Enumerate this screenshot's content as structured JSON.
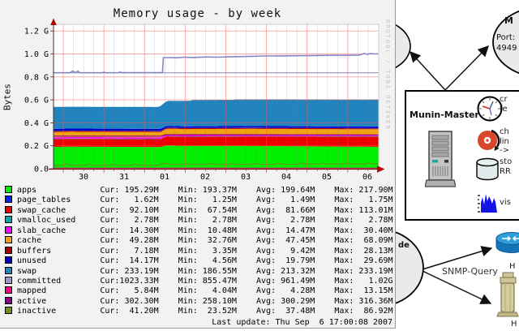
{
  "graph_panel": {
    "title": "Memory usage - by week",
    "y_axis_label": "Bytes",
    "watermark": "RRDTOOL / TOBI OETIKER",
    "last_update": "Last update: Thu Sep  6 17:00:08 2007",
    "legend": {
      "headers": [
        "Cur:",
        "Min:",
        "Avg:",
        "Max:"
      ],
      "rows": [
        {
          "label": "apps",
          "color": "#00EE00",
          "cur": "195.29M",
          "min": "193.37M",
          "avg": "199.64M",
          "max": "217.90M"
        },
        {
          "label": "page_tables",
          "color": "#0022FF",
          "cur": "1.62M",
          "min": "1.25M",
          "avg": "1.49M",
          "max": "1.75M"
        },
        {
          "label": "swap_cache",
          "color": "#EE0000",
          "cur": "92.10M",
          "min": "67.54M",
          "avg": "81.66M",
          "max": "113.01M"
        },
        {
          "label": "vmalloc_used",
          "color": "#00AAAA",
          "cur": "2.78M",
          "min": "2.78M",
          "avg": "2.78M",
          "max": "2.78M"
        },
        {
          "label": "slab_cache",
          "color": "#FF00FF",
          "cur": "14.30M",
          "min": "10.48M",
          "avg": "14.47M",
          "max": "30.40M"
        },
        {
          "label": "cache",
          "color": "#EFA30F",
          "cur": "49.28M",
          "min": "32.76M",
          "avg": "47.45M",
          "max": "68.09M"
        },
        {
          "label": "buffers",
          "color": "#AA0000",
          "cur": "7.18M",
          "min": "3.35M",
          "avg": "9.42M",
          "max": "28.13M"
        },
        {
          "label": "unused",
          "color": "#0000CC",
          "cur": "14.17M",
          "min": "4.56M",
          "avg": "19.79M",
          "max": "29.69M"
        },
        {
          "label": "swap",
          "color": "#2284BE",
          "cur": "233.19M",
          "min": "186.55M",
          "avg": "213.32M",
          "max": "233.19M"
        },
        {
          "label": "committed",
          "color": "#9999CC",
          "cur": "1023.33M",
          "min": "855.47M",
          "avg": "961.49M",
          "max": "1.02G"
        },
        {
          "label": "mapped",
          "color": "#FF0084",
          "cur": "5.84M",
          "min": "4.04M",
          "avg": "4.28M",
          "max": "13.15M"
        },
        {
          "label": "active",
          "color": "#8B008B",
          "cur": "302.30M",
          "min": "258.10M",
          "avg": "300.29M",
          "max": "316.36M"
        },
        {
          "label": "inactive",
          "color": "#708F18",
          "cur": "41.20M",
          "min": "23.52M",
          "avg": "37.48M",
          "max": "86.92M"
        }
      ]
    }
  },
  "chart_data": {
    "type": "area",
    "title": "Memory usage - by week",
    "ylabel": "Bytes",
    "unit": "G",
    "ylim": [
      0,
      1.3
    ],
    "grid": true,
    "y_ticks": [
      [
        "0.0",
        0
      ],
      [
        "0.2 G",
        0.2
      ],
      [
        "0.4 G",
        0.4
      ],
      [
        "0.6 G",
        0.6
      ],
      [
        "0.8 G",
        0.8
      ],
      [
        "1.0 G",
        1.0
      ],
      [
        "1.2 G",
        1.2
      ]
    ],
    "x_ticks": [
      "30",
      "31",
      "01",
      "02",
      "03",
      "04",
      "05",
      "06"
    ],
    "stack_order_bottom_to_top": [
      "apps",
      "swap_cache",
      "vmalloc_used",
      "slab_cache",
      "cache",
      "buffers",
      "page_tables",
      "unused",
      "swap"
    ],
    "areas": [
      {
        "name": "apps",
        "color": "#00EE00",
        "points": [
          [
            0,
            0.19
          ],
          [
            0.05,
            0.192
          ],
          [
            0.33,
            0.19
          ],
          [
            0.345,
            0.205
          ],
          [
            0.4,
            0.2
          ],
          [
            0.6,
            0.199
          ],
          [
            0.8,
            0.195
          ],
          [
            1,
            0.191
          ]
        ]
      },
      {
        "name": "swap_cache",
        "color": "#EE0000",
        "points": [
          [
            0,
            0.068
          ],
          [
            0.33,
            0.068
          ],
          [
            0.35,
            0.078
          ],
          [
            0.7,
            0.085
          ],
          [
            1,
            0.09
          ]
        ]
      },
      {
        "name": "vmalloc_used",
        "color": "#00AAAA",
        "points": [
          [
            0,
            0.003
          ],
          [
            1,
            0.003
          ]
        ]
      },
      {
        "name": "slab_cache",
        "color": "#FF00FF",
        "points": [
          [
            0,
            0.013
          ],
          [
            0.34,
            0.013
          ],
          [
            0.36,
            0.012
          ],
          [
            1,
            0.012
          ]
        ]
      },
      {
        "name": "cache",
        "color": "#EFA30F",
        "points": [
          [
            0,
            0.046
          ],
          [
            0.33,
            0.046
          ],
          [
            0.36,
            0.052
          ],
          [
            1,
            0.048
          ]
        ]
      },
      {
        "name": "buffers",
        "color": "#AA0000",
        "points": [
          [
            0,
            0.008
          ],
          [
            1,
            0.008
          ]
        ]
      },
      {
        "name": "page_tables",
        "color": "#0022FF",
        "points": [
          [
            0,
            0.002
          ],
          [
            1,
            0.002
          ]
        ]
      },
      {
        "name": "unused",
        "color": "#0000CC",
        "points": [
          [
            0,
            0.018
          ],
          [
            0.33,
            0.018
          ],
          [
            0.36,
            0.014
          ],
          [
            1,
            0.014
          ]
        ]
      },
      {
        "name": "swap",
        "color": "#2284BE",
        "points": [
          [
            0,
            0.19
          ],
          [
            0.32,
            0.19
          ],
          [
            0.335,
            0.205
          ],
          [
            0.355,
            0.218
          ],
          [
            0.42,
            0.222
          ],
          [
            0.43,
            0.229
          ],
          [
            0.55,
            0.229
          ],
          [
            0.56,
            0.233
          ],
          [
            1,
            0.234
          ]
        ]
      }
    ],
    "lines": [
      {
        "name": "mapped",
        "color": "#FF0084",
        "width": 1,
        "points": [
          [
            0,
            0.006
          ],
          [
            1,
            0.006
          ]
        ]
      },
      {
        "name": "inactive",
        "color": "#708F18",
        "width": 1.1,
        "points": [
          [
            0,
            0.03
          ],
          [
            0.03,
            0.03
          ],
          [
            0.04,
            0.044
          ],
          [
            0.05,
            0.031
          ],
          [
            0.1,
            0.03
          ],
          [
            0.11,
            0.042
          ],
          [
            0.12,
            0.031
          ],
          [
            0.17,
            0.03
          ],
          [
            0.18,
            0.04
          ],
          [
            0.19,
            0.031
          ],
          [
            0.24,
            0.03
          ],
          [
            0.25,
            0.041
          ],
          [
            0.26,
            0.031
          ],
          [
            0.32,
            0.03
          ],
          [
            0.34,
            0.048
          ],
          [
            0.36,
            0.038
          ],
          [
            0.4,
            0.037
          ],
          [
            0.41,
            0.046
          ],
          [
            0.42,
            0.038
          ],
          [
            0.47,
            0.037
          ],
          [
            0.48,
            0.047
          ],
          [
            0.49,
            0.038
          ],
          [
            0.54,
            0.037
          ],
          [
            0.55,
            0.047
          ],
          [
            0.56,
            0.038
          ],
          [
            0.61,
            0.038
          ],
          [
            0.62,
            0.048
          ],
          [
            0.63,
            0.039
          ],
          [
            0.68,
            0.038
          ],
          [
            0.69,
            0.048
          ],
          [
            0.7,
            0.039
          ],
          [
            0.75,
            0.039
          ],
          [
            0.76,
            0.049
          ],
          [
            0.77,
            0.04
          ],
          [
            0.82,
            0.039
          ],
          [
            0.83,
            0.049
          ],
          [
            0.84,
            0.04
          ],
          [
            0.89,
            0.04
          ],
          [
            0.9,
            0.05
          ],
          [
            0.91,
            0.041
          ],
          [
            0.96,
            0.041
          ],
          [
            0.97,
            0.052
          ],
          [
            0.98,
            0.042
          ],
          [
            1,
            0.041
          ]
        ]
      },
      {
        "name": "active",
        "color": "#8B008B",
        "width": 1.2,
        "points": [
          [
            0,
            0.284
          ],
          [
            0.33,
            0.284
          ],
          [
            0.345,
            0.296
          ],
          [
            0.6,
            0.296
          ],
          [
            1,
            0.295
          ]
        ]
      },
      {
        "name": "committed-baseline",
        "color": "#8585C7",
        "width": 1,
        "points": [
          [
            0,
            0.836
          ],
          [
            1,
            0.836
          ]
        ]
      },
      {
        "name": "committed",
        "color": "#8585C7",
        "width": 1.6,
        "points": [
          [
            0,
            0.836
          ],
          [
            0.05,
            0.836
          ],
          [
            0.058,
            0.851
          ],
          [
            0.068,
            0.837
          ],
          [
            0.075,
            0.85
          ],
          [
            0.08,
            0.837
          ],
          [
            0.15,
            0.836
          ],
          [
            0.155,
            0.842
          ],
          [
            0.16,
            0.836
          ],
          [
            0.2,
            0.837
          ],
          [
            0.205,
            0.843
          ],
          [
            0.21,
            0.837
          ],
          [
            0.27,
            0.837
          ],
          [
            0.335,
            0.837
          ],
          [
            0.338,
            0.968
          ],
          [
            0.36,
            0.968
          ],
          [
            0.38,
            0.966
          ],
          [
            0.4,
            0.972
          ],
          [
            0.43,
            0.969
          ],
          [
            0.47,
            0.974
          ],
          [
            0.5,
            0.972
          ],
          [
            0.55,
            0.976
          ],
          [
            0.6,
            0.978
          ],
          [
            0.65,
            0.982
          ],
          [
            0.7,
            0.983
          ],
          [
            0.78,
            0.985
          ],
          [
            0.85,
            0.988
          ],
          [
            0.9,
            0.988
          ],
          [
            0.94,
            0.99
          ],
          [
            0.955,
            1.004
          ],
          [
            0.965,
            0.997
          ],
          [
            0.975,
            1.003
          ],
          [
            0.99,
            1.0
          ],
          [
            1,
            1.001
          ]
        ]
      }
    ]
  },
  "diagram": {
    "master_label": "Munin-Master",
    "snmp_query_label": "SNMP-Query",
    "node_top_right": {
      "title_fragment": "M",
      "port_label": "Port:",
      "port_value": "4949"
    },
    "node_bottom_fragment": "de",
    "task_fragments": {
      "clock": [
        "cr",
        "fe"
      ],
      "disc": [
        "ch",
        "lin",
        "->"
      ],
      "database": [
        "sto",
        "RR"
      ],
      "chart": [
        "vis"
      ]
    },
    "host_label_top": "H",
    "host_label_bottom": "H"
  }
}
